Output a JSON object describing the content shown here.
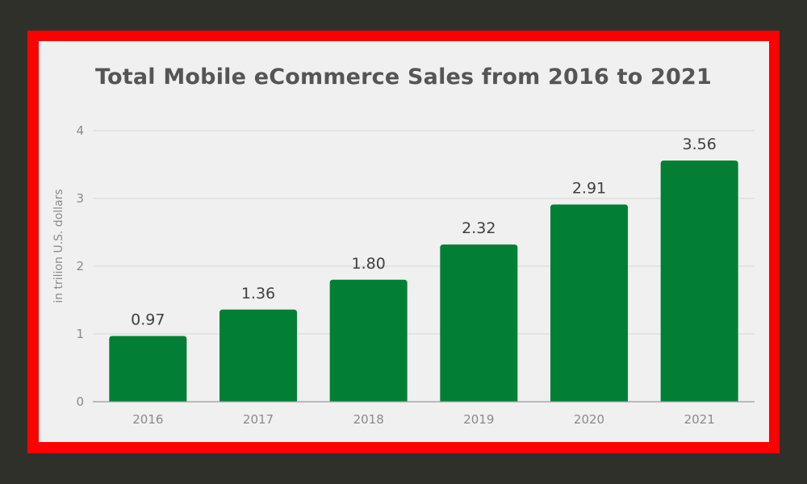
{
  "colors": {
    "background": "#30302b",
    "frame": "#ff0000",
    "panel": "#f0f0f0",
    "bar": "#037f35",
    "title": "#555555"
  },
  "chart_data": {
    "type": "bar",
    "title": "Total Mobile eCommerce Sales from 2016 to 2021",
    "xlabel": "",
    "ylabel": "in trilion U.S. dollars",
    "categories": [
      "2016",
      "2017",
      "2018",
      "2019",
      "2020",
      "2021"
    ],
    "values": [
      0.97,
      1.36,
      1.8,
      2.32,
      2.91,
      3.56
    ],
    "value_labels": [
      "0.97",
      "1.36",
      "1.80",
      "2.32",
      "2.91",
      "3.56"
    ],
    "ylim": [
      0,
      4
    ],
    "yticks": [
      "0",
      "1",
      "2",
      "3",
      "4"
    ],
    "grid": true,
    "legend": "none"
  }
}
